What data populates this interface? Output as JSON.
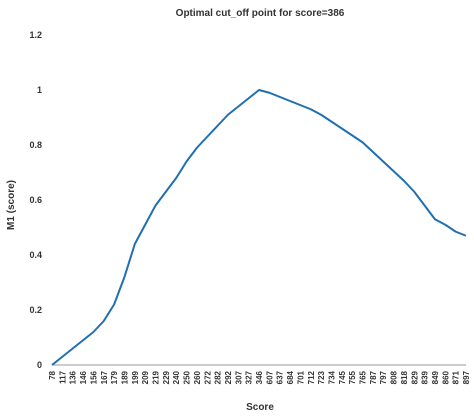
{
  "chart_data": {
    "type": "line",
    "title": "Optimal cut_off point for score=386",
    "x_label": "Score",
    "y_label": "M1 (score)",
    "categories": [
      "78",
      "117",
      "136",
      "146",
      "156",
      "167",
      "179",
      "189",
      "199",
      "209",
      "219",
      "229",
      "240",
      "250",
      "260",
      "272",
      "282",
      "292",
      "307",
      "327",
      "346",
      "607",
      "637",
      "684",
      "701",
      "712",
      "723",
      "734",
      "745",
      "755",
      "765",
      "787",
      "797",
      "808",
      "818",
      "829",
      "839",
      "849",
      "860",
      "871",
      "897"
    ],
    "series": [
      {
        "name": "M1",
        "color": "#1f6fb2",
        "values": [
          0.0,
          0.03,
          0.06,
          0.09,
          0.12,
          0.16,
          0.22,
          0.32,
          0.44,
          0.51,
          0.58,
          0.63,
          0.68,
          0.74,
          0.79,
          0.83,
          0.87,
          0.91,
          0.94,
          0.97,
          1.0,
          0.99,
          0.975,
          0.96,
          0.945,
          0.93,
          0.91,
          0.885,
          0.86,
          0.835,
          0.81,
          0.775,
          0.74,
          0.705,
          0.67,
          0.63,
          0.58,
          0.53,
          0.51,
          0.485,
          0.47
        ]
      }
    ],
    "ylim": [
      0,
      1.2
    ],
    "yticks": [
      0,
      0.2,
      0.4,
      0.6,
      0.8,
      1,
      1.2
    ],
    "grid": false
  }
}
